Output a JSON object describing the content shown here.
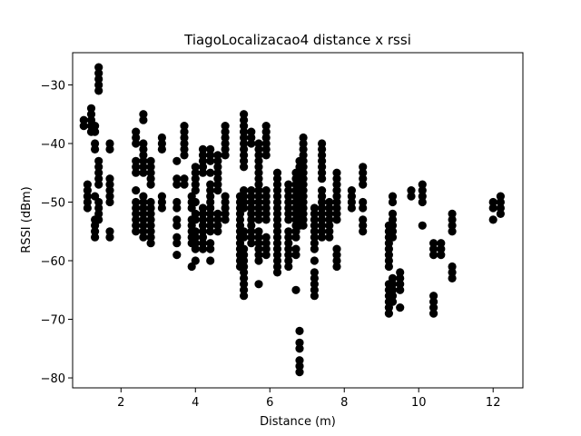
{
  "chart_data": {
    "type": "scatter",
    "title": "TiagoLocalizacao4 distance x rssi",
    "xlabel": "Distance (m)",
    "ylabel": "RSSI (dBm)",
    "xlim": [
      0.7,
      12.8
    ],
    "ylim": [
      -81.7,
      -24.5
    ],
    "xticks": [
      2,
      4,
      6,
      8,
      10,
      12
    ],
    "yticks": [
      -30,
      -40,
      -50,
      -60,
      -70,
      -80
    ],
    "grid": false,
    "marker_color": "#000000",
    "series": [
      {
        "points": [
          {
            "x": 1.0,
            "y_values": [
              -36,
              -37
            ]
          },
          {
            "x": 1.1,
            "y_values": [
              -47,
              -48,
              -49,
              -50,
              -51
            ]
          },
          {
            "x": 1.2,
            "y_values": [
              -34,
              -35,
              -36,
              -37,
              -38
            ]
          },
          {
            "x": 1.3,
            "y_values": [
              -37,
              -38,
              -40,
              -41,
              -49,
              -53,
              -54,
              -55,
              -56
            ]
          },
          {
            "x": 1.4,
            "y_values": [
              -27,
              -28,
              -29,
              -30,
              -31,
              -43,
              -44,
              -45,
              -46,
              -47,
              -50,
              -51,
              -52,
              -53
            ]
          },
          {
            "x": 1.7,
            "y_values": [
              -40,
              -41,
              -46,
              -47,
              -48,
              -49,
              -50,
              -55,
              -56
            ]
          },
          {
            "x": 2.4,
            "y_values": [
              -38,
              -39,
              -40,
              -43,
              -44,
              -45,
              -48,
              -50,
              -51,
              -52,
              -53,
              -54,
              -55
            ]
          },
          {
            "x": 2.6,
            "y_values": [
              -35,
              -36,
              -40,
              -41,
              -42,
              -43,
              -44,
              -45,
              -49,
              -50,
              -51,
              -52,
              -53,
              -54,
              -55,
              -56
            ]
          },
          {
            "x": 2.8,
            "y_values": [
              -43,
              -44,
              -45,
              -46,
              -47,
              -50,
              -51,
              -52,
              -53,
              -54,
              -55,
              -56,
              -57
            ]
          },
          {
            "x": 3.1,
            "y_values": [
              -39,
              -40,
              -41,
              -49,
              -50,
              -51
            ]
          },
          {
            "x": 3.5,
            "y_values": [
              -43,
              -46,
              -47,
              -50,
              -51,
              -53,
              -54,
              -56,
              -57,
              -59
            ]
          },
          {
            "x": 3.7,
            "y_values": [
              -37,
              -38,
              -39,
              -40,
              -41,
              -42,
              -46,
              -47
            ]
          },
          {
            "x": 3.9,
            "y_values": [
              -49,
              -50,
              -51,
              -53,
              -54,
              -55,
              -56,
              -57,
              -61
            ]
          },
          {
            "x": 4.0,
            "y_values": [
              -44,
              -45,
              -46,
              -47,
              -48,
              -50,
              -52,
              -53,
              -55,
              -56,
              -57,
              -58,
              -60
            ]
          },
          {
            "x": 4.2,
            "y_values": [
              -41,
              -42,
              -43,
              -44,
              -45,
              -51,
              -52,
              -53,
              -54,
              -55,
              -56,
              -57,
              -58
            ]
          },
          {
            "x": 4.4,
            "y_values": [
              -41,
              -42,
              -43,
              -45,
              -47,
              -48,
              -49,
              -50,
              -51,
              -52,
              -53,
              -54,
              -55,
              -57,
              -58,
              -60
            ]
          },
          {
            "x": 4.6,
            "y_values": [
              -42,
              -43,
              -44,
              -45,
              -46,
              -47,
              -48,
              -52,
              -53,
              -54,
              -55
            ]
          },
          {
            "x": 4.8,
            "y_values": [
              -37,
              -38,
              -39,
              -40,
              -41,
              -42,
              -49,
              -50,
              -51,
              -52,
              -53
            ]
          },
          {
            "x": 5.2,
            "y_values": [
              -49,
              -50,
              -51,
              -52,
              -53,
              -54,
              -55,
              -56,
              -57,
              -58,
              -59,
              -60,
              -61
            ]
          },
          {
            "x": 5.3,
            "y_values": [
              -35,
              -36,
              -37,
              -38,
              -39,
              -40,
              -41,
              -42,
              -43,
              -44,
              -48,
              -49,
              -50,
              -51,
              -55,
              -56,
              -58,
              -59,
              -60,
              -61,
              -62,
              -63,
              -64,
              -65,
              -66
            ]
          },
          {
            "x": 5.5,
            "y_values": [
              -38,
              -39,
              -40,
              -48,
              -49,
              -50,
              -51,
              -52,
              -53,
              -54,
              -55,
              -56,
              -57
            ]
          },
          {
            "x": 5.7,
            "y_values": [
              -40,
              -41,
              -42,
              -43,
              -44,
              -45,
              -46,
              -47,
              -48,
              -49,
              -50,
              -51,
              -52,
              -53,
              -55,
              -56,
              -57,
              -58,
              -59,
              -60,
              -64
            ]
          },
          {
            "x": 5.9,
            "y_values": [
              -37,
              -38,
              -39,
              -40,
              -41,
              -42,
              -48,
              -49,
              -50,
              -51,
              -52,
              -53,
              -56,
              -57,
              -58,
              -59
            ]
          },
          {
            "x": 6.2,
            "y_values": [
              -45,
              -46,
              -47,
              -48,
              -49,
              -50,
              -51,
              -52,
              -53,
              -54,
              -55,
              -56,
              -57,
              -58,
              -59,
              -60,
              -61,
              -62
            ]
          },
          {
            "x": 6.5,
            "y_values": [
              -47,
              -48,
              -49,
              -50,
              -51,
              -52,
              -53,
              -55,
              -56,
              -57,
              -58,
              -59,
              -60,
              -61
            ]
          },
          {
            "x": 6.7,
            "y_values": [
              -45,
              -46,
              -47,
              -48,
              -49,
              -50,
              -51,
              -52,
              -53,
              -54,
              -55,
              -56,
              -58,
              -59,
              -65
            ]
          },
          {
            "x": 6.8,
            "y_values": [
              -43,
              -44,
              -45,
              -46,
              -47,
              -48,
              -49,
              -50,
              -51,
              -52,
              -53,
              -54,
              -72,
              -74,
              -75,
              -77,
              -78,
              -79
            ]
          },
          {
            "x": 6.9,
            "y_values": [
              -39,
              -40,
              -41,
              -42,
              -43,
              -44,
              -45,
              -46,
              -47,
              -48,
              -49,
              -50,
              -51,
              -52,
              -53,
              -54
            ]
          },
          {
            "x": 7.2,
            "y_values": [
              -51,
              -52,
              -53,
              -54,
              -55,
              -56,
              -57,
              -58,
              -60,
              -62,
              -63,
              -64,
              -65,
              -66
            ]
          },
          {
            "x": 7.4,
            "y_values": [
              -40,
              -41,
              -42,
              -43,
              -44,
              -45,
              -46,
              -48,
              -49,
              -50,
              -51,
              -52,
              -53,
              -54,
              -55,
              -56
            ]
          },
          {
            "x": 7.6,
            "y_values": [
              -50,
              -51,
              -52,
              -53,
              -54,
              -55,
              -56
            ]
          },
          {
            "x": 7.8,
            "y_values": [
              -45,
              -46,
              -47,
              -48,
              -49,
              -50,
              -51,
              -52,
              -53,
              -58,
              -59,
              -60,
              -61
            ]
          },
          {
            "x": 8.2,
            "y_values": [
              -48,
              -49,
              -50,
              -51
            ]
          },
          {
            "x": 8.5,
            "y_values": [
              -44,
              -45,
              -46,
              -47,
              -50,
              -51,
              -53,
              -54,
              -55
            ]
          },
          {
            "x": 9.2,
            "y_values": [
              -54,
              -55,
              -56,
              -57,
              -58,
              -59,
              -60,
              -61,
              -64,
              -65,
              -66,
              -67,
              -68,
              -69
            ]
          },
          {
            "x": 9.3,
            "y_values": [
              -49,
              -50,
              -52,
              -53,
              -54,
              -55,
              -56,
              -63,
              -64,
              -65,
              -66,
              -67
            ]
          },
          {
            "x": 9.5,
            "y_values": [
              -62,
              -63,
              -64,
              -65,
              -68
            ]
          },
          {
            "x": 9.8,
            "y_values": [
              -48,
              -49
            ]
          },
          {
            "x": 10.1,
            "y_values": [
              -47,
              -48,
              -49,
              -50,
              -54
            ]
          },
          {
            "x": 10.4,
            "y_values": [
              -57,
              -58,
              -59,
              -66,
              -67,
              -68,
              -69
            ]
          },
          {
            "x": 10.6,
            "y_values": [
              -57,
              -58,
              -59
            ]
          },
          {
            "x": 10.9,
            "y_values": [
              -52,
              -53,
              -54,
              -55,
              -61,
              -62,
              -63
            ]
          },
          {
            "x": 12.0,
            "y_values": [
              -50,
              -51,
              -53
            ]
          },
          {
            "x": 12.2,
            "y_values": [
              -49,
              -50,
              -51,
              -52
            ]
          }
        ]
      }
    ]
  }
}
